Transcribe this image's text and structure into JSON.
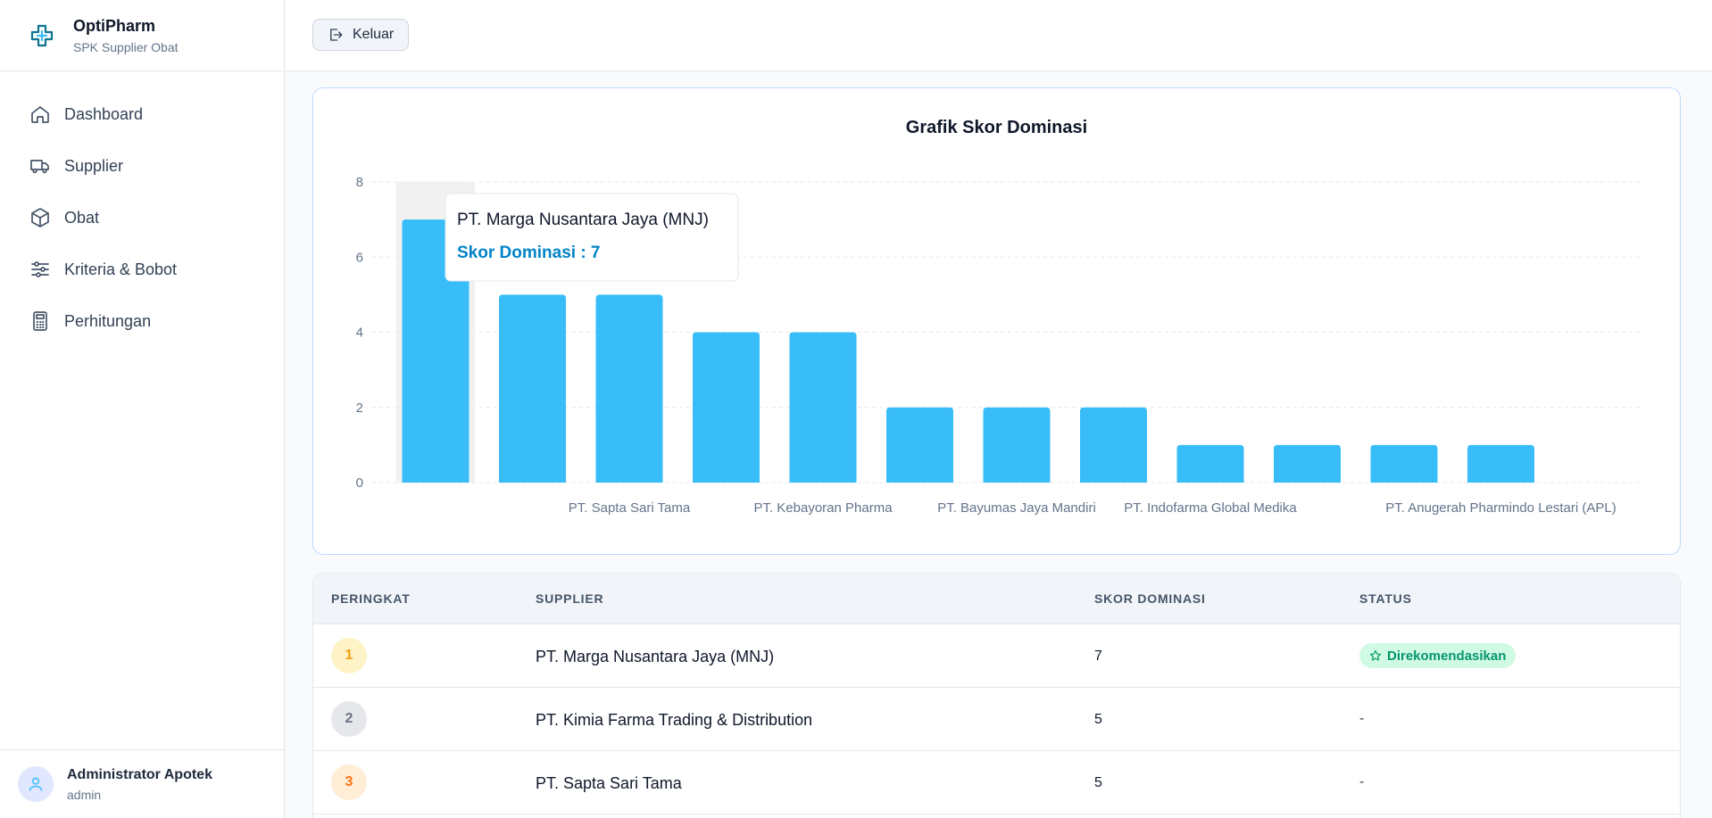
{
  "brand": {
    "name": "OptiPharm",
    "subtitle": "SPK Supplier Obat"
  },
  "nav": [
    {
      "label": "Dashboard",
      "icon": "home-icon"
    },
    {
      "label": "Supplier",
      "icon": "truck-icon"
    },
    {
      "label": "Obat",
      "icon": "box-icon"
    },
    {
      "label": "Kriteria & Bobot",
      "icon": "sliders-icon"
    },
    {
      "label": "Perhitungan",
      "icon": "calculator-icon"
    }
  ],
  "user": {
    "name": "Administrator Apotek",
    "role": "admin"
  },
  "topbar": {
    "logout_label": "Keluar"
  },
  "chart": {
    "title": "Grafik Skor Dominasi"
  },
  "chart_data": {
    "type": "bar",
    "title": "Grafik Skor Dominasi",
    "xlabel": "",
    "ylabel": "",
    "ylim": [
      0,
      8
    ],
    "yticks": [
      0,
      2,
      4,
      6,
      8
    ],
    "categories": [
      "",
      "",
      "PT. Sapta Sari Tama",
      "",
      "PT. Kebayoran Pharma",
      "",
      "PT. Bayumas Jaya Mandiri",
      "",
      "PT. Indofarma Global Medika",
      "",
      "",
      "PT. Anugerah Pharmindo Lestari (APL)"
    ],
    "values": [
      7,
      5,
      5,
      4,
      4,
      2,
      2,
      2,
      1,
      1,
      1,
      1
    ],
    "color": "#38bdf8",
    "grid": true,
    "tooltip": {
      "title": "PT. Marga Nusantara Jaya (MNJ)",
      "label": "Skor Dominasi : 7",
      "bar_index": 0
    }
  },
  "table": {
    "headers": [
      "PERINGKAT",
      "SUPPLIER",
      "SKOR DOMINASI",
      "STATUS"
    ],
    "rows": [
      {
        "rank": "1",
        "supplier": "PT. Marga Nusantara Jaya (MNJ)",
        "skor": "7",
        "status": "Direkomendasikan"
      },
      {
        "rank": "2",
        "supplier": "PT. Kimia Farma Trading & Distribution",
        "skor": "5",
        "status": "-"
      },
      {
        "rank": "3",
        "supplier": "PT. Sapta Sari Tama",
        "skor": "5",
        "status": "-"
      }
    ]
  },
  "colors": {
    "bar": "#38bdf8",
    "accent": "#0284c7",
    "rank1_bg": "#fef3c7",
    "rank1_fg": "#f59e0b",
    "rank2_bg": "#e5e7eb",
    "rank2_fg": "#6b7280",
    "rank3_bg": "#ffedd5",
    "rank3_fg": "#f97316",
    "badge_bg": "#d1fae5",
    "badge_fg": "#059669"
  }
}
